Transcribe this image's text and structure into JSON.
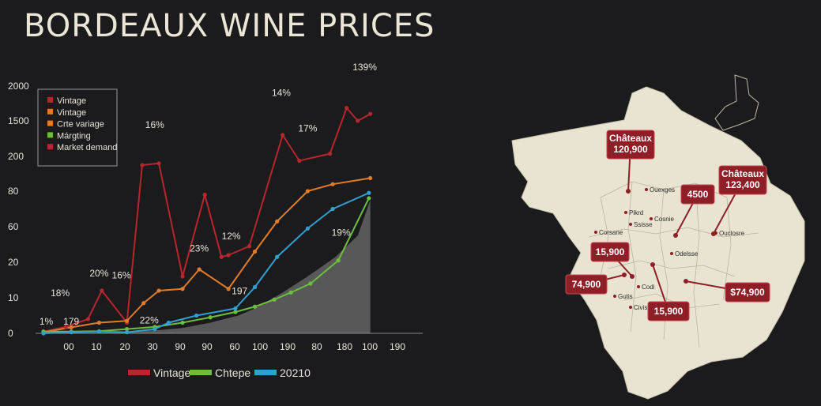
{
  "title": "BORDEAUX WINE PRICES",
  "chart_data": {
    "type": "line",
    "y_tick_labels": [
      "0",
      "10",
      "20",
      "60",
      "80",
      "200",
      "1500",
      "2000"
    ],
    "x": [
      "00",
      "10",
      "20",
      "30",
      "90",
      "90",
      "60",
      "100",
      "190",
      "80",
      "180",
      "100",
      "190"
    ],
    "series": [
      {
        "name": "Vintage",
        "color": "#b8262d",
        "points": [
          [
            0,
            0.5
          ],
          [
            0.8,
            1.8
          ],
          [
            1.6,
            4
          ],
          [
            2.1,
            12
          ],
          [
            3,
            3
          ],
          [
            3.55,
            90
          ],
          [
            4.15,
            92
          ],
          [
            5,
            16
          ],
          [
            5.8,
            58
          ],
          [
            6.4,
            23
          ],
          [
            6.65,
            24
          ],
          [
            7.4,
            29
          ],
          [
            8.6,
            124
          ],
          [
            9.2,
            95
          ],
          [
            10.3,
            103
          ],
          [
            10.9,
            153
          ],
          [
            11.3,
            140
          ],
          [
            11.75,
            147
          ]
        ]
      },
      {
        "name": "Vintage",
        "color": "#e07b2a",
        "points": [
          [
            0,
            0.3
          ],
          [
            1,
            1.7
          ],
          [
            2,
            3
          ],
          [
            3,
            3.5
          ],
          [
            3.6,
            8.5
          ],
          [
            4.15,
            12
          ],
          [
            5,
            12.5
          ],
          [
            5.6,
            18
          ],
          [
            6.65,
            12.5
          ],
          [
            7.6,
            26
          ],
          [
            8.4,
            43
          ],
          [
            9.5,
            60
          ],
          [
            10.4,
            68
          ],
          [
            11.75,
            75
          ]
        ]
      },
      {
        "name": "Chtepe",
        "color": "#6bbf3d",
        "points": [
          [
            0,
            0.5
          ],
          [
            1,
            0.5
          ],
          [
            2,
            0.6
          ],
          [
            3,
            1.2
          ],
          [
            4,
            1.8
          ],
          [
            5,
            3
          ],
          [
            6,
            4.5
          ],
          [
            6.9,
            6
          ],
          [
            7.6,
            7.5
          ],
          [
            8.3,
            9.5
          ],
          [
            8.9,
            11.5
          ],
          [
            9.6,
            14
          ],
          [
            10.6,
            21
          ],
          [
            11.7,
            56
          ]
        ]
      },
      {
        "name": "20210",
        "color": "#2fa0cf",
        "points": [
          [
            0,
            0
          ],
          [
            1,
            0.3
          ],
          [
            2,
            0.5
          ],
          [
            3,
            0.3
          ],
          [
            4,
            1.2
          ],
          [
            4.5,
            3
          ],
          [
            5.5,
            5
          ],
          [
            6.9,
            7
          ],
          [
            7.6,
            13
          ],
          [
            8.4,
            23
          ],
          [
            9.5,
            39
          ],
          [
            10.4,
            50
          ],
          [
            11.7,
            59
          ]
        ]
      }
    ],
    "area_series": {
      "color": "#8a8a8a",
      "points": [
        [
          0,
          0
        ],
        [
          2,
          0.2
        ],
        [
          4,
          0.8
        ],
        [
          5,
          1.5
        ],
        [
          6,
          3
        ],
        [
          7,
          5
        ],
        [
          7.6,
          7
        ],
        [
          8.5,
          11
        ],
        [
          9.5,
          16
        ],
        [
          10.5,
          23
        ],
        [
          11.3,
          35
        ],
        [
          11.75,
          55
        ]
      ]
    },
    "legend": [
      "Vintage",
      "Vintage",
      "Crte variage",
      "Márgting",
      "Market demand"
    ],
    "legend_colors": [
      "#b8262d",
      "#e07b2a",
      "#e07b2a",
      "#6bbf3d",
      "#b8262d"
    ],
    "bottom_legend": [
      {
        "label": "Vintage",
        "color": "#b8262d"
      },
      {
        "label": "Chtepe",
        "color": "#6bbf3d"
      },
      {
        "label": "20210",
        "color": "#2fa0cf"
      }
    ],
    "annotations": [
      {
        "text": "1%",
        "x": 0.1,
        "y": 2.5
      },
      {
        "text": "18%",
        "x": 0.6,
        "y": 10.5
      },
      {
        "text": "179",
        "x": 1.0,
        "y": 2.5
      },
      {
        "text": "20%",
        "x": 2.0,
        "y": 16
      },
      {
        "text": "16%",
        "x": 2.8,
        "y": 15.5
      },
      {
        "text": "22%",
        "x": 3.8,
        "y": 2.8
      },
      {
        "text": "16%",
        "x": 4.0,
        "y": 132
      },
      {
        "text": "23%",
        "x": 5.6,
        "y": 26
      },
      {
        "text": "12%",
        "x": 6.75,
        "y": 33
      },
      {
        "text": "197",
        "x": 7.05,
        "y": 11
      },
      {
        "text": "14%",
        "x": 8.55,
        "y": 165
      },
      {
        "text": "17%",
        "x": 9.5,
        "y": 128
      },
      {
        "text": "19%",
        "x": 10.7,
        "y": 35
      },
      {
        "text": "139%",
        "x": 11.55,
        "y": 195
      }
    ]
  },
  "map": {
    "callouts": [
      {
        "text": [
          "Châteaux",
          "120,900"
        ]
      },
      {
        "text": [
          "Châteaux",
          "123,400"
        ]
      },
      {
        "text": [
          "4500"
        ]
      },
      {
        "text": [
          "15,900"
        ]
      },
      {
        "text": [
          "74,900"
        ]
      },
      {
        "text": [
          "15,900"
        ]
      },
      {
        "text": [
          "$74,900"
        ]
      }
    ],
    "towns": [
      "Ouexges",
      "Pikrd",
      "Cosnie",
      "Ssisse",
      "Corsane",
      "Ouclosre",
      "Odelsse",
      "Gutis",
      "Codi",
      "Civise"
    ]
  }
}
